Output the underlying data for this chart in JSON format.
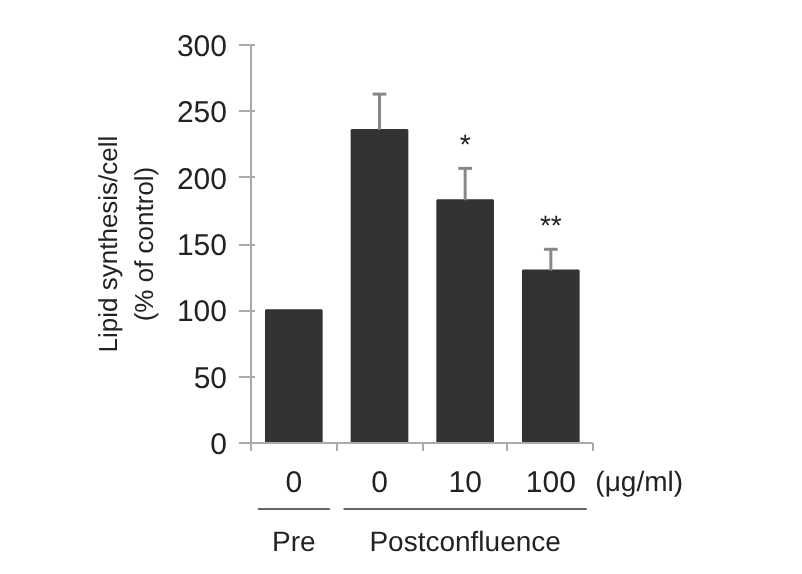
{
  "chart_data": {
    "type": "bar",
    "ylabel": "Lipid synthesis/cell\n(% of control)",
    "categories": [
      "0",
      "0",
      "10",
      "100"
    ],
    "values": [
      100,
      236,
      183,
      130
    ],
    "errors": [
      null,
      [
        236,
        263
      ],
      [
        183,
        207
      ],
      [
        130,
        146
      ]
    ],
    "color": "#333333",
    "ylim": [
      0,
      300
    ],
    "yticks": [
      0,
      50,
      100,
      150,
      200,
      250,
      300
    ],
    "grid": false,
    "annotations": [
      {
        "text": "*",
        "x": "10",
        "y": 213
      },
      {
        "text": "**",
        "x": "100",
        "y": 152
      },
      "(μg/ml)",
      "Pre",
      "Postconfluence"
    ]
  }
}
